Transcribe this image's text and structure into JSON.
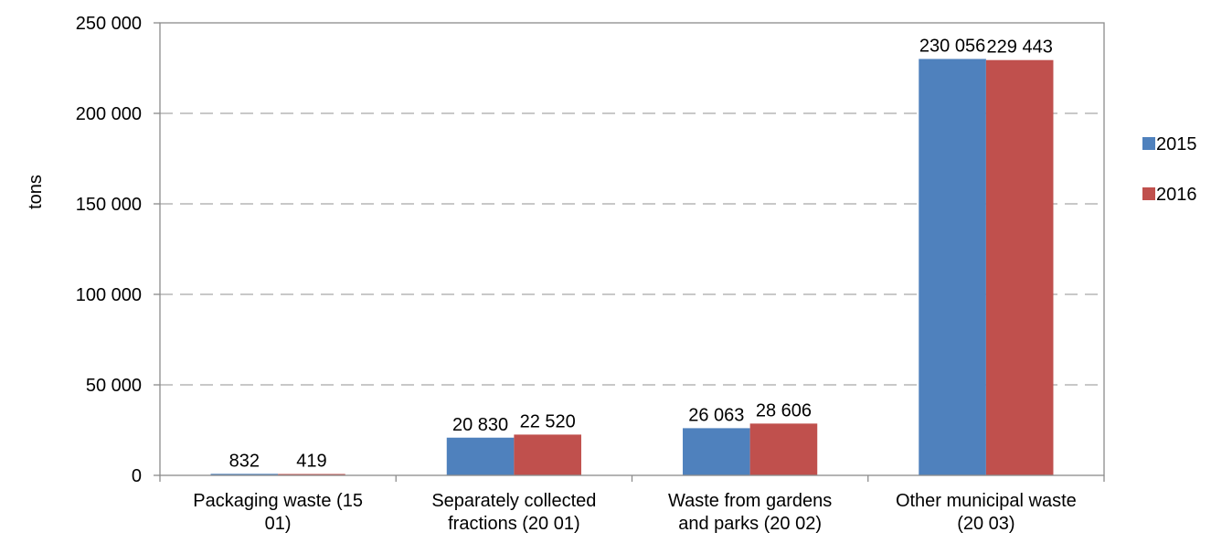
{
  "chart_data": {
    "type": "bar",
    "title": "",
    "xlabel": "",
    "ylabel": "tons",
    "ylim": [
      0,
      250000
    ],
    "yticks": [
      0,
      50000,
      100000,
      150000,
      200000,
      250000
    ],
    "ytick_labels": [
      "0",
      "50 000",
      "100 000",
      "150 000",
      "200 000",
      "250 000"
    ],
    "grid": "horizontal dashed",
    "legend_position": "right",
    "categories": [
      [
        "Packaging waste (15",
        "01)"
      ],
      [
        "Separately collected",
        "fractions (20 01)"
      ],
      [
        "Waste from gardens",
        "and parks (20 02)"
      ],
      [
        "Other municipal waste",
        "(20 03)"
      ]
    ],
    "series": [
      {
        "name": "2015",
        "color": "#4F81BD",
        "values": [
          832,
          20830,
          26063,
          230056
        ],
        "labels": [
          "832",
          "20 830",
          "26 063",
          "230 056"
        ]
      },
      {
        "name": "2016",
        "color": "#C0504D",
        "values": [
          419,
          22520,
          28606,
          229443
        ],
        "labels": [
          "419",
          "22 520",
          "28 606",
          "229 443"
        ]
      }
    ]
  }
}
